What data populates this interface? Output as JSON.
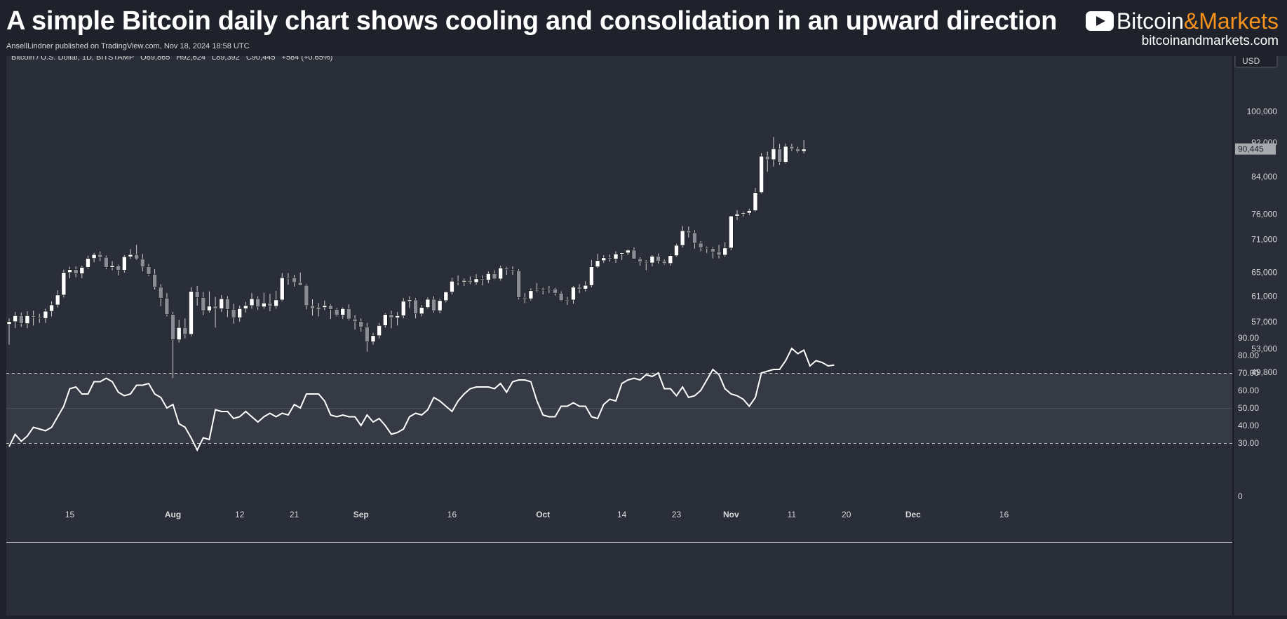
{
  "header": {
    "title": "A simple Bitcoin daily chart shows cooling and consolidation in an upward direction",
    "byline": "AnsellLindner published on TradingView.com, Nov 18, 2024 18:58 UTC",
    "brand_name_a": "Bitcoin",
    "brand_name_amp": "&",
    "brand_name_b": "Markets",
    "brand_url": "bitcoinandmarkets.com"
  },
  "legend": {
    "symbol": "Bitcoin / U.S. Dollar, 1D, BITSTAMP",
    "open": "O89,865",
    "high": "H92,624",
    "low": "L89,392",
    "close": "C90,445",
    "change": "+584 (+0.65%)"
  },
  "currency_button": "USD",
  "last_price_label": "90,445",
  "colors": {
    "background": "#2a2e39",
    "page": "#1f222b",
    "up_candle": "#ffffff",
    "down_candle": "#8a8d96",
    "rsi_line": "#ffffff",
    "rsi_band": "#363a45"
  },
  "chart_data": [
    {
      "type": "candlestick",
      "title": "Bitcoin / U.S. Dollar, 1D, BITSTAMP",
      "yscale": "log",
      "ylim": [
        47500,
        108000
      ],
      "y_ticks": [
        49800,
        53000,
        57000,
        61000,
        65000,
        71000,
        76000,
        84000,
        92000,
        100000
      ],
      "x_ticks": [
        "15",
        "Aug",
        "12",
        "21",
        "Sep",
        "16",
        "Oct",
        "14",
        "23",
        "Nov",
        "11",
        "20",
        "Dec",
        "16"
      ],
      "x_tick_dates": [
        "2024-07-15",
        "2024-08-01",
        "2024-08-12",
        "2024-08-21",
        "2024-09-01",
        "2024-09-16",
        "2024-10-01",
        "2024-10-14",
        "2024-10-23",
        "2024-11-01",
        "2024-11-11",
        "2024-11-20",
        "2024-12-01",
        "2024-12-16"
      ],
      "x_range": [
        "2024-07-04",
        "2024-12-18"
      ],
      "start_date": "2024-07-05",
      "ohlc": [
        [
          56600,
          57500,
          53600,
          57000
        ],
        [
          57000,
          58500,
          56000,
          57900
        ],
        [
          57900,
          58400,
          56200,
          56700
        ],
        [
          56700,
          58600,
          56000,
          57900
        ],
        [
          57900,
          58700,
          56400,
          57700
        ],
        [
          57700,
          58200,
          56800,
          57500
        ],
        [
          57500,
          59000,
          56800,
          58600
        ],
        [
          58600,
          60200,
          57800,
          59600
        ],
        [
          59600,
          62000,
          59200,
          61200
        ],
        [
          61200,
          65500,
          60800,
          65000
        ],
        [
          65000,
          66000,
          64000,
          65500
        ],
        [
          65500,
          66100,
          64200,
          64800
        ],
        [
          64800,
          66200,
          64000,
          65900
        ],
        [
          65900,
          68000,
          65600,
          67500
        ],
        [
          67500,
          68500,
          66800,
          68200
        ],
        [
          68200,
          68800,
          67000,
          67700
        ],
        [
          67700,
          68000,
          65600,
          65900
        ],
        [
          65900,
          67000,
          65400,
          66200
        ],
        [
          66200,
          66400,
          64500,
          65400
        ],
        [
          65400,
          68100,
          65000,
          67800
        ],
        [
          67800,
          69200,
          67400,
          68200
        ],
        [
          68200,
          70000,
          67200,
          67400
        ],
        [
          67400,
          68300,
          65200,
          66000
        ],
        [
          66000,
          66500,
          64400,
          64700
        ],
        [
          64700,
          65600,
          62100,
          62500
        ],
        [
          62500,
          63000,
          59400,
          60700
        ],
        [
          60700,
          61500,
          57800,
          58100
        ],
        [
          58100,
          58500,
          49000,
          54300
        ],
        [
          54300,
          57300,
          53900,
          56100
        ],
        [
          56100,
          57500,
          54500,
          55100
        ],
        [
          55100,
          62500,
          54800,
          61800
        ],
        [
          61800,
          62700,
          59500,
          60800
        ],
        [
          60800,
          61700,
          58000,
          58700
        ],
        [
          58700,
          61800,
          58400,
          59400
        ],
        [
          59400,
          60900,
          56100,
          59000
        ],
        [
          59000,
          61200,
          58500,
          60600
        ],
        [
          60600,
          61000,
          57700,
          58900
        ],
        [
          58900,
          59800,
          56700,
          57600
        ],
        [
          57600,
          59500,
          57000,
          59000
        ],
        [
          59000,
          60100,
          58400,
          59500
        ],
        [
          59500,
          61500,
          59000,
          60600
        ],
        [
          60600,
          61000,
          58800,
          59300
        ],
        [
          59300,
          61600,
          59000,
          59900
        ],
        [
          59900,
          61400,
          58600,
          59400
        ],
        [
          59400,
          61900,
          59000,
          60400
        ],
        [
          60400,
          64900,
          60200,
          64100
        ],
        [
          64100,
          64900,
          62900,
          64100
        ],
        [
          64100,
          64600,
          62600,
          63300
        ],
        [
          63300,
          65000,
          62800,
          62800
        ],
        [
          62800,
          63000,
          58900,
          59500
        ],
        [
          59500,
          60500,
          57900,
          59000
        ],
        [
          59000,
          59900,
          57800,
          59200
        ],
        [
          59200,
          60300,
          58800,
          59500
        ],
        [
          59500,
          59700,
          57400,
          58900
        ],
        [
          58900,
          59100,
          57800,
          58000
        ],
        [
          58000,
          59200,
          57400,
          59000
        ],
        [
          59000,
          59700,
          57200,
          57400
        ],
        [
          57400,
          58000,
          55800,
          57000
        ],
        [
          57000,
          57500,
          55500,
          56200
        ],
        [
          56200,
          56800,
          52600,
          54000
        ],
        [
          54000,
          55300,
          53600,
          54900
        ],
        [
          54900,
          56800,
          54500,
          56400
        ],
        [
          56400,
          58300,
          56100,
          58100
        ],
        [
          58100,
          58700,
          56000,
          57600
        ],
        [
          57600,
          58500,
          56400,
          57900
        ],
        [
          57900,
          60700,
          57500,
          60200
        ],
        [
          60200,
          61000,
          59100,
          60400
        ],
        [
          60400,
          60700,
          57500,
          58200
        ],
        [
          58200,
          59600,
          57800,
          59200
        ],
        [
          59200,
          60800,
          59000,
          60500
        ],
        [
          60500,
          61000,
          58400,
          58700
        ],
        [
          58700,
          60600,
          58300,
          60300
        ],
        [
          60300,
          61800,
          60000,
          61700
        ],
        [
          61700,
          64100,
          61300,
          63500
        ],
        [
          63500,
          64500,
          62800,
          63400
        ],
        [
          63400,
          64000,
          62700,
          63600
        ],
        [
          63600,
          64300,
          63000,
          63300
        ],
        [
          63300,
          64700,
          62900,
          63900
        ],
        [
          63900,
          64500,
          62800,
          63700
        ],
        [
          63700,
          65200,
          63200,
          64800
        ],
        [
          64800,
          65400,
          63800,
          63900
        ],
        [
          63900,
          66200,
          63600,
          65800
        ],
        [
          65800,
          66000,
          64600,
          65500
        ],
        [
          65500,
          66100,
          64600,
          65300
        ],
        [
          65300,
          65600,
          60500,
          60800
        ],
        [
          60800,
          61500,
          59900,
          60600
        ],
        [
          60600,
          62300,
          60300,
          61900
        ],
        [
          61900,
          63200,
          61700,
          62000
        ],
        [
          62000,
          62400,
          61300,
          62100
        ],
        [
          62100,
          62700,
          61500,
          62200
        ],
        [
          62200,
          62400,
          61100,
          61500
        ],
        [
          61500,
          61800,
          60200,
          60300
        ],
        [
          60300,
          60900,
          59600,
          60400
        ],
        [
          60400,
          62700,
          59800,
          62500
        ],
        [
          62500,
          63000,
          61500,
          62200
        ],
        [
          62200,
          63500,
          61800,
          62800
        ],
        [
          62800,
          67200,
          62500,
          66000
        ],
        [
          66000,
          68300,
          65800,
          67100
        ],
        [
          67100,
          68100,
          66700,
          67600
        ],
        [
          67600,
          68200,
          66900,
          67400
        ],
        [
          67400,
          68800,
          66700,
          68300
        ],
        [
          68300,
          68600,
          67200,
          68500
        ],
        [
          68500,
          69200,
          68100,
          69000
        ],
        [
          69000,
          69500,
          67600,
          67400
        ],
        [
          67400,
          67700,
          66200,
          66900
        ],
        [
          66900,
          67200,
          65400,
          66700
        ],
        [
          66700,
          68100,
          66100,
          67900
        ],
        [
          67900,
          68400,
          66600,
          67000
        ],
        [
          67000,
          67300,
          66400,
          66600
        ],
        [
          66600,
          68200,
          66200,
          68000
        ],
        [
          68000,
          70200,
          67800,
          69900
        ],
        [
          69900,
          73600,
          69500,
          72700
        ],
        [
          72700,
          73500,
          71400,
          72300
        ],
        [
          72300,
          72800,
          69300,
          70300
        ],
        [
          70300,
          70700,
          68800,
          69500
        ],
        [
          69500,
          69700,
          68500,
          69300
        ],
        [
          69300,
          69600,
          67500,
          68700
        ],
        [
          68700,
          70000,
          67500,
          68100
        ],
        [
          68100,
          70500,
          67800,
          69400
        ],
        [
          69400,
          75500,
          69000,
          75600
        ],
        [
          75600,
          76800,
          74800,
          76000
        ],
        [
          76000,
          76500,
          75500,
          76200
        ],
        [
          76200,
          77100,
          75800,
          76700
        ],
        [
          76700,
          81500,
          76500,
          80500
        ],
        [
          80500,
          89500,
          80300,
          88700
        ],
        [
          88700,
          89800,
          85100,
          87900
        ],
        [
          87900,
          93400,
          86300,
          90500
        ],
        [
          90500,
          91700,
          86700,
          87300
        ],
        [
          87300,
          91800,
          87000,
          91100
        ],
        [
          91100,
          91700,
          90000,
          90500
        ],
        [
          90500,
          91000,
          89600,
          89900
        ],
        [
          89900,
          92624,
          89392,
          90445
        ]
      ]
    },
    {
      "type": "line",
      "title": "RSI",
      "ylim": [
        0,
        90
      ],
      "y_ticks": [
        0,
        30,
        40,
        50,
        60,
        70,
        80,
        90
      ],
      "y_tick_labels": [
        "0",
        "30.00",
        "40.00",
        "50.00",
        "60.00",
        "70.00",
        "80.00",
        "90.00"
      ],
      "bands": [
        30,
        70
      ],
      "values": [
        28,
        35,
        31,
        34,
        39,
        38,
        37,
        39,
        45,
        51,
        61,
        62,
        58,
        58,
        65,
        65,
        67,
        65,
        59,
        57,
        58,
        63,
        63,
        64,
        58,
        56,
        50,
        52,
        41,
        39,
        33,
        26,
        33,
        32,
        49,
        48,
        48,
        44,
        45,
        48,
        45,
        42,
        45,
        47,
        45,
        47,
        46,
        52,
        50,
        58,
        58,
        58,
        54,
        46,
        45,
        46,
        45,
        45,
        40,
        46,
        42,
        44,
        40,
        35,
        36,
        38,
        45,
        47,
        46,
        49,
        56,
        54,
        51,
        48,
        54,
        58,
        61,
        62,
        62,
        62,
        61,
        64,
        59,
        65,
        66,
        66,
        65,
        54,
        46,
        45,
        45,
        51,
        51,
        53,
        51,
        51,
        45,
        44,
        52,
        55,
        54,
        64,
        66,
        67,
        66,
        69,
        68,
        70,
        61,
        61,
        57,
        62,
        56,
        57,
        60,
        66,
        72,
        69,
        61,
        58,
        57,
        55,
        51,
        56,
        70,
        71,
        72,
        72,
        77,
        84,
        81,
        83,
        74,
        77,
        76,
        74,
        74.5
      ]
    }
  ]
}
